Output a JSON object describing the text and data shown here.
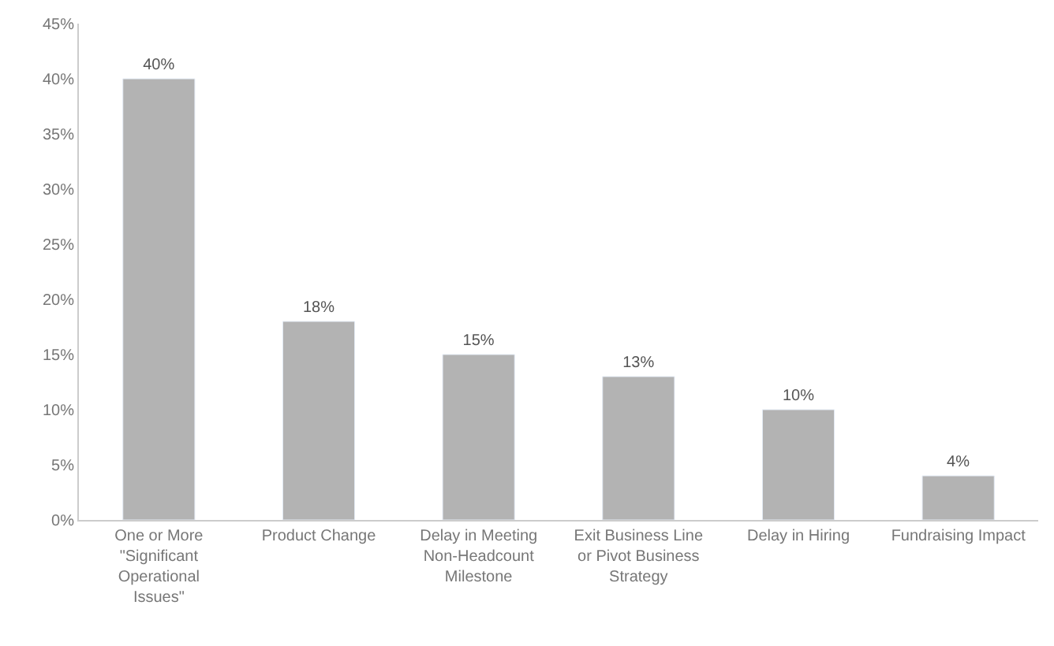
{
  "chart_data": {
    "type": "bar",
    "categories": [
      "One or More \"Significant Operational Issues\"",
      "Product Change",
      "Delay in Meeting Non-Headcount Milestone",
      "Exit Business Line or Pivot Business Strategy",
      "Delay in Hiring",
      "Fundraising Impact"
    ],
    "values": [
      40,
      18,
      15,
      13,
      10,
      4
    ],
    "value_labels": [
      "40%",
      "18%",
      "15%",
      "13%",
      "10%",
      "4%"
    ],
    "color": "#b3b3b3",
    "ylim": [
      0,
      45
    ],
    "yticks": [
      {
        "value": 0,
        "label": "0%"
      },
      {
        "value": 5,
        "label": "5%"
      },
      {
        "value": 10,
        "label": "10%"
      },
      {
        "value": 15,
        "label": "15%"
      },
      {
        "value": 20,
        "label": "20%"
      },
      {
        "value": 25,
        "label": "25%"
      },
      {
        "value": 30,
        "label": "30%"
      },
      {
        "value": 35,
        "label": "35%"
      },
      {
        "value": 40,
        "label": "40%"
      },
      {
        "value": 45,
        "label": "45%"
      }
    ],
    "grid": false,
    "legend": false
  }
}
